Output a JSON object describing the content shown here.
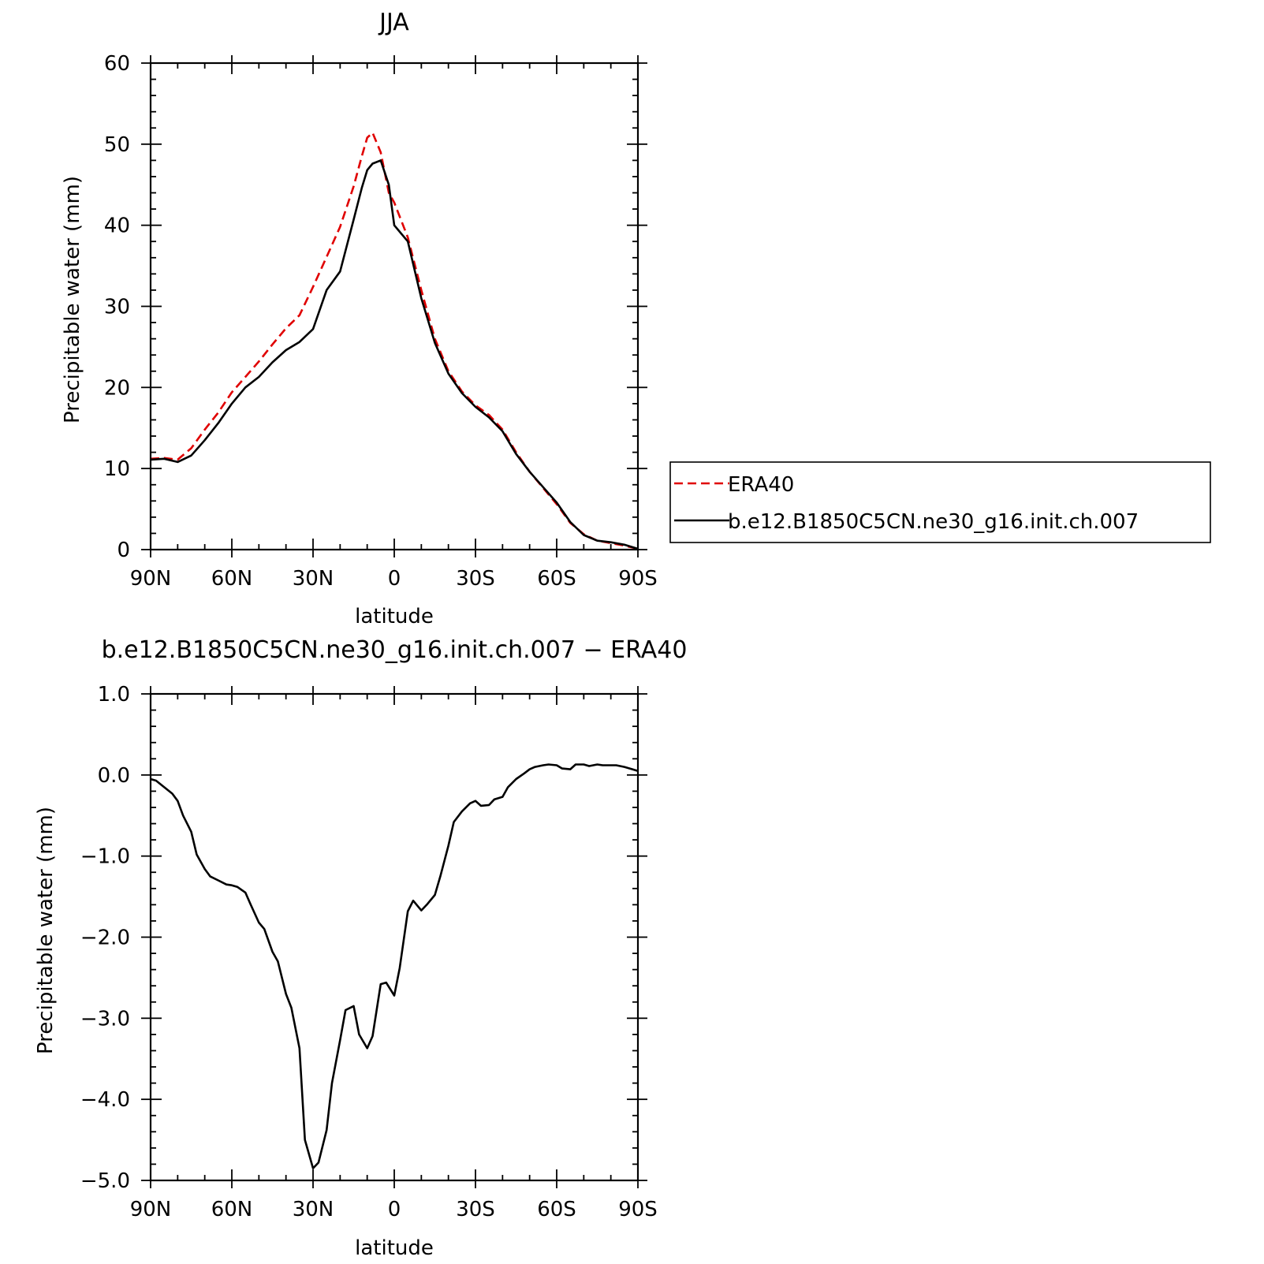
{
  "chart_data": [
    {
      "type": "line",
      "title": "JJA",
      "xlabel": "latitude",
      "ylabel": "Precipitable water (mm)",
      "xlim": [
        90,
        -90
      ],
      "ylim": [
        0,
        60
      ],
      "x_ticks": [
        90,
        60,
        30,
        0,
        -30,
        -60,
        -90
      ],
      "x_tick_labels": [
        "90N",
        "60N",
        "30N",
        "0",
        "30S",
        "60S",
        "90S"
      ],
      "y_ticks": [
        0,
        10,
        20,
        30,
        40,
        50,
        60
      ],
      "y_tick_labels": [
        "0",
        "10",
        "20",
        "30",
        "40",
        "50",
        "60"
      ],
      "grid": false,
      "legend_position": "right",
      "x": [
        90,
        85,
        80,
        75,
        70,
        65,
        60,
        55,
        50,
        45,
        40,
        35,
        30,
        25,
        20,
        15,
        12,
        10,
        8,
        5,
        2,
        0,
        -5,
        -10,
        -15,
        -20,
        -25,
        -30,
        -35,
        -40,
        -45,
        -50,
        -55,
        -60,
        -65,
        -70,
        -75,
        -80,
        -85,
        -90
      ],
      "series": [
        {
          "name": "ERA40",
          "color": "#e00000",
          "dash": "dashed",
          "values": [
            11.2,
            11.3,
            11.1,
            12.5,
            14.8,
            16.9,
            19.4,
            21.3,
            23.2,
            25.3,
            27.3,
            28.9,
            32.4,
            36.1,
            39.8,
            44.8,
            48.5,
            50.8,
            51.4,
            49.0,
            44.0,
            42.8,
            38.5,
            32.0,
            26.0,
            22.0,
            19.5,
            17.8,
            16.6,
            14.8,
            12.0,
            9.6,
            7.6,
            5.6,
            3.3,
            1.9,
            1.1,
            0.8,
            0.5,
            0.1
          ]
        },
        {
          "name": "b.e12.B1850C5CN.ne30_g16.init.ch.007",
          "color": "#000000",
          "dash": "solid",
          "values": [
            11.1,
            11.2,
            10.8,
            11.6,
            13.5,
            15.6,
            18.0,
            20.0,
            21.3,
            23.1,
            24.6,
            25.6,
            27.2,
            32.0,
            34.3,
            40.7,
            44.6,
            46.8,
            47.6,
            48.0,
            45.0,
            40.0,
            38.0,
            31.0,
            25.5,
            21.7,
            19.3,
            17.6,
            16.3,
            14.6,
            11.8,
            9.6,
            7.7,
            5.8,
            3.4,
            1.8,
            1.1,
            0.9,
            0.6,
            0.1
          ]
        }
      ]
    },
    {
      "type": "line",
      "title": "b.e12.B1850C5CN.ne30_g16.init.ch.007 − ERA40",
      "xlabel": "latitude",
      "ylabel": "Precipitable water (mm)",
      "xlim": [
        90,
        -90
      ],
      "ylim": [
        -5,
        1
      ],
      "x_ticks": [
        90,
        60,
        30,
        0,
        -30,
        -60,
        -90
      ],
      "x_tick_labels": [
        "90N",
        "60N",
        "30N",
        "0",
        "30S",
        "60S",
        "90S"
      ],
      "y_ticks": [
        1,
        0,
        -1,
        -2,
        -3,
        -4,
        -5
      ],
      "y_tick_labels": [
        "1.0",
        "0.0",
        "−1.0",
        "−2.0",
        "−3.0",
        "−4.0",
        "−5.0"
      ],
      "grid": false,
      "x": [
        90,
        88,
        85,
        82,
        80,
        78,
        75,
        73,
        70,
        68,
        65,
        62,
        60,
        58,
        55,
        53,
        50,
        48,
        45,
        43,
        40,
        38,
        35,
        33,
        30,
        28,
        25,
        23,
        20,
        18,
        15,
        13,
        10,
        8,
        5,
        3,
        0,
        -2,
        -5,
        -7,
        -10,
        -12,
        -15,
        -17,
        -20,
        -22,
        -25,
        -28,
        -30,
        -32,
        -35,
        -37,
        -40,
        -42,
        -45,
        -48,
        -50,
        -52,
        -55,
        -57,
        -60,
        -62,
        -65,
        -67,
        -70,
        -72,
        -75,
        -77,
        -80,
        -82,
        -85,
        -88,
        -90
      ],
      "series": [
        {
          "name": "",
          "color": "#000000",
          "dash": "solid",
          "values": [
            -0.05,
            -0.07,
            -0.15,
            -0.23,
            -0.32,
            -0.5,
            -0.7,
            -0.98,
            -1.16,
            -1.25,
            -1.3,
            -1.35,
            -1.36,
            -1.38,
            -1.45,
            -1.6,
            -1.82,
            -1.9,
            -2.18,
            -2.3,
            -2.7,
            -2.87,
            -3.37,
            -4.5,
            -4.85,
            -4.78,
            -4.38,
            -3.8,
            -3.27,
            -2.9,
            -2.85,
            -3.2,
            -3.37,
            -3.22,
            -2.58,
            -2.56,
            -2.72,
            -2.38,
            -1.68,
            -1.55,
            -1.67,
            -1.6,
            -1.48,
            -1.25,
            -0.87,
            -0.58,
            -0.45,
            -0.35,
            -0.32,
            -0.38,
            -0.37,
            -0.3,
            -0.27,
            -0.15,
            -0.05,
            0.02,
            0.07,
            0.1,
            0.12,
            0.13,
            0.12,
            0.08,
            0.07,
            0.13,
            0.13,
            0.11,
            0.13,
            0.12,
            0.12,
            0.12,
            0.1,
            0.07,
            0.05
          ]
        }
      ]
    }
  ]
}
